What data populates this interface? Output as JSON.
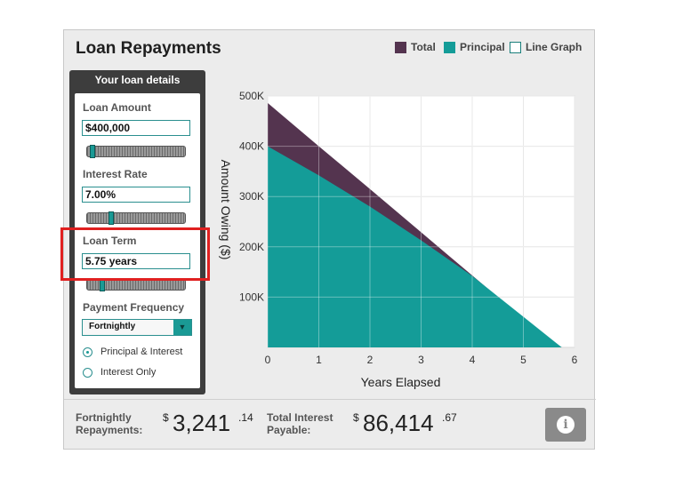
{
  "header": {
    "title": "Loan Repayments"
  },
  "legend": [
    {
      "label": "Total",
      "color": "#54344f",
      "kind": "filled"
    },
    {
      "label": "Principal",
      "color": "#149c98",
      "kind": "filled"
    },
    {
      "label": "Line Graph",
      "color": "#ffffff",
      "kind": "checkbox"
    }
  ],
  "panel": {
    "heading": "Your loan details",
    "loan_amount": {
      "label": "Loan Amount",
      "value": "$400,000",
      "slider_fraction": 0.02
    },
    "interest_rate": {
      "label": "Interest Rate",
      "value": "7.00%",
      "slider_fraction": 0.25
    },
    "loan_term": {
      "label": "Loan Term",
      "value": "5.75 years",
      "slider_fraction": 0.14
    },
    "payment_frequency": {
      "label": "Payment Frequency",
      "selected": "Fortnightly",
      "arrow": "▼"
    },
    "radios": [
      {
        "label": "Principal & Interest",
        "checked": true
      },
      {
        "label": "Interest Only",
        "checked": false
      }
    ]
  },
  "footer": {
    "repay_label_1": "Fortnightly",
    "repay_label_2": "Repayments:",
    "repay_dollar": "$",
    "repay_whole": "3,241",
    "repay_cents": ".14",
    "interest_label_1": "Total Interest",
    "interest_label_2": "Payable:",
    "interest_dollar": "$",
    "interest_whole": "86,414",
    "interest_cents": ".67",
    "info_icon": "i"
  },
  "chart_data": {
    "type": "area",
    "xlabel": "Years Elapsed",
    "ylabel": "Amount Owing ($)",
    "xlim": [
      0,
      6
    ],
    "ylim": [
      0,
      500000
    ],
    "x_ticks": [
      "0",
      "1",
      "2",
      "3",
      "4",
      "5",
      "6"
    ],
    "y_ticks": [
      "100K",
      "200K",
      "300K",
      "400K",
      "500K"
    ],
    "grid": true,
    "colors": {
      "total": "#54344f",
      "principal": "#149c98"
    },
    "series": [
      {
        "name": "Total",
        "x": [
          0,
          1,
          2,
          3,
          4,
          5,
          5.75
        ],
        "values": [
          486000,
          400000,
          315000,
          229000,
          143000,
          57000,
          0
        ]
      },
      {
        "name": "Principal",
        "x": [
          0,
          1,
          2,
          3,
          4,
          5,
          5.75
        ],
        "values": [
          400000,
          342000,
          280000,
          213000,
          142000,
          61000,
          0
        ]
      }
    ]
  }
}
